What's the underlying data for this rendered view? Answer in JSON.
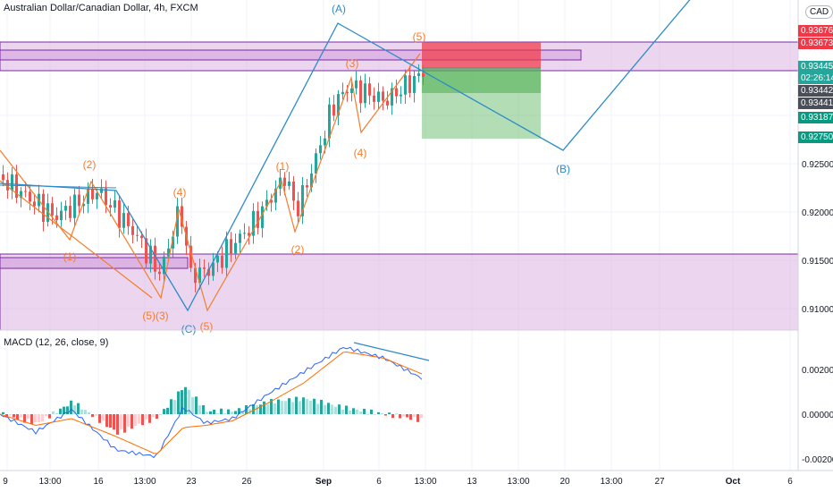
{
  "header": {
    "symbol_title": "Australian Dollar/Canadian Dollar, 4h, FXCM",
    "currency": "CAD",
    "macd_title": "MACD (12, 26, close, 9)"
  },
  "price_axis": {
    "ticks": [
      "0.92500",
      "0.92000",
      "0.91500",
      "0.91000"
    ],
    "tags": [
      {
        "text": "0.93676",
        "color": "#f23645"
      },
      {
        "text": "0.93673",
        "color": "#f23645"
      },
      {
        "text": "0.93445",
        "color": "#26a69a"
      },
      {
        "text": "02:26:14",
        "color": "#26a69a"
      },
      {
        "text": "0.93442",
        "color": "#4a4e58"
      },
      {
        "text": "0.93441",
        "color": "#4a4e58"
      },
      {
        "text": "0.93187",
        "color": "#089981"
      },
      {
        "text": "0.92750",
        "color": "#089981"
      }
    ]
  },
  "macd_axis": {
    "ticks": [
      "0.00200",
      "0.00000",
      "-0.00200"
    ]
  },
  "time_axis": {
    "labels": [
      "9",
      "13:00",
      "16",
      "13:00",
      "23",
      "26",
      "Sep",
      "6",
      "13:00",
      "13",
      "13:00",
      "20",
      "13:00",
      "27",
      "Oct",
      "6"
    ]
  },
  "wave_labels": {
    "orange": [
      "(1)",
      "(2)",
      "(5)(3)",
      "(4)",
      "(5)",
      "(1)",
      "(2)",
      "(3)",
      "(4)",
      "(5)"
    ],
    "blue": [
      "(A)",
      "(B)",
      "(C)"
    ]
  },
  "colors": {
    "up": "#26a69a",
    "down": "#ef5350",
    "wave_orange": "#f57c2b",
    "wave_blue": "#2e8bc9",
    "zone": "#7b2aa6",
    "target_red": "#f23645",
    "target_green": "#089981",
    "macd_line": "#2962ff",
    "signal_line": "#ff6d00"
  },
  "chart_data": {
    "type": "candlestick",
    "pair": "AUD/CAD",
    "timeframe": "4h",
    "price_range": [
      0.909,
      0.9385
    ],
    "close_path": [
      {
        "x": "Aug 9",
        "y": 0.9235
      },
      {
        "x": "Aug 12",
        "y": 0.9195
      },
      {
        "x": "Aug 15",
        "y": 0.9222
      },
      {
        "x": "Aug 18",
        "y": 0.9177
      },
      {
        "x": "Aug 20",
        "y": 0.9136
      },
      {
        "x": "Aug 22",
        "y": 0.9205
      },
      {
        "x": "Aug 23",
        "y": 0.9135
      },
      {
        "x": "Aug 25",
        "y": 0.914
      },
      {
        "x": "Aug 27",
        "y": 0.9188
      },
      {
        "x": "Aug 30",
        "y": 0.9238
      },
      {
        "x": "Aug 31",
        "y": 0.92
      },
      {
        "x": "Sep 2",
        "y": 0.925
      },
      {
        "x": "Sep 3",
        "y": 0.9312
      },
      {
        "x": "Sep 4",
        "y": 0.933
      },
      {
        "x": "Sep 6",
        "y": 0.9315
      },
      {
        "x": "Sep 8",
        "y": 0.9344
      }
    ],
    "zones": [
      {
        "from": 0.9335,
        "to": 0.9357
      },
      {
        "from": 0.909,
        "to": 0.9162
      }
    ],
    "position": {
      "entry": 0.93445,
      "stop": 0.93676,
      "targets": [
        0.93187,
        0.9275
      ]
    },
    "macd": {
      "range": [
        -0.0024,
        0.0033
      ],
      "macd_path": [
        0.0,
        -0.0008,
        0.0002,
        -0.0016,
        -0.0019,
        0.0003,
        -0.0004,
        -0.0002,
        0.0009,
        0.0019,
        0.003,
        0.0025,
        0.0016
      ],
      "signal_path": [
        0.0,
        -0.0005,
        -0.0002,
        -0.001,
        -0.0018,
        -0.0006,
        -0.0005,
        -0.0003,
        0.0005,
        0.0014,
        0.0028,
        0.0025,
        0.0018
      ]
    }
  }
}
